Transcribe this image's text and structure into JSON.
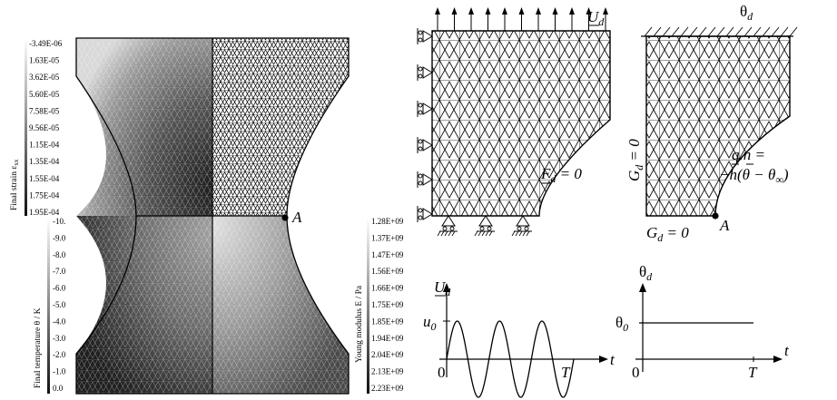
{
  "strain_bar": {
    "title": "Final strain ε",
    "title_sub": "xx",
    "ticks": [
      "-3.49E-06",
      "1.63E-05",
      "3.62E-05",
      "5.60E-05",
      "7.58E-05",
      "9.56E-05",
      "1.15E-04",
      "1.35E-04",
      "1.55E-04",
      "1.75E-04",
      "1.95E-04"
    ]
  },
  "temp_bar": {
    "title": "Final temperature θ / K",
    "ticks": [
      "-10.",
      "-9.0",
      "-8.0",
      "-7.0",
      "-6.0",
      "-5.0",
      "-4.0",
      "-3.0",
      "-2.0",
      "-1.0",
      "0.0"
    ]
  },
  "young_bar": {
    "title": "Young modulus E / Pa",
    "ticks": [
      "1.28E+09",
      "1.37E+09",
      "1.47E+09",
      "1.56E+09",
      "1.66E+09",
      "1.75E+09",
      "1.85E+09",
      "1.94E+09",
      "2.04E+09",
      "2.13E+09",
      "2.23E+09"
    ]
  },
  "mech": {
    "Ud": "U",
    "Ud_sub": "d",
    "Fd": "F",
    "Fd_sub": "d",
    "Fd_rest": " = 0"
  },
  "thermal": {
    "theta": "θ",
    "theta_sub": "d",
    "Gd": "G",
    "Gd_sub": "d",
    "Gd_rest": " = 0",
    "flux_l1": "q.n =",
    "flux_l2": "−h(θ − θ",
    "flux_sub": "∞",
    "flux_end": ")"
  },
  "point_label": "A",
  "plot_u": {
    "ylabel": "U",
    "ylabel_sub": "d",
    "xlabel": "t",
    "u0": "u",
    "u0_sub": "0",
    "origin": "0",
    "T": "T"
  },
  "plot_theta": {
    "ylabel": "θ",
    "ylabel_sub": "d",
    "xlabel": "t",
    "th0": "θ",
    "th0_sub": "0",
    "origin": "0",
    "T": "T"
  }
}
